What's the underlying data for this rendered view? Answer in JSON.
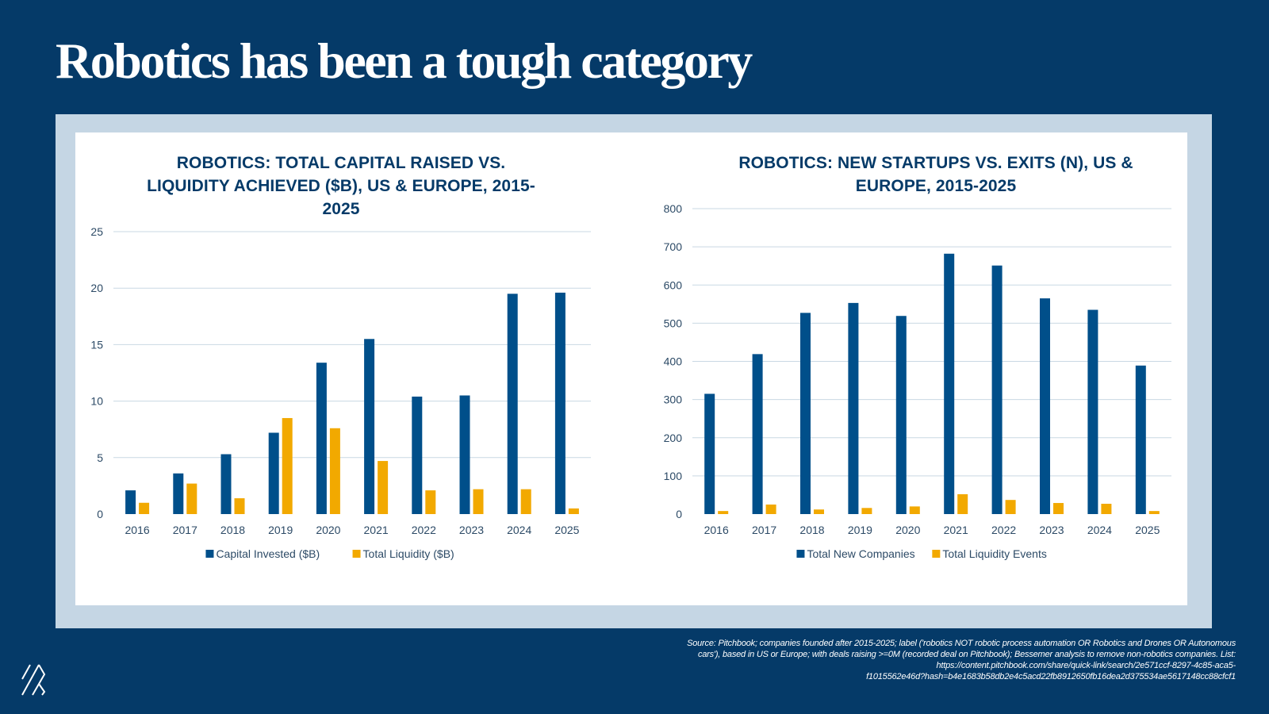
{
  "slide": {
    "title": "Robotics has been a tough category",
    "source_lines": [
      "Source: Pitchbook; companies founded after 2015-2025; label ('robotics NOT robotic process automation OR Robotics and Drones OR Autonomous",
      "cars'), based in US or Europe; with deals raising >=0M (recorded deal on Pitchbook); Bessemer analysis to remove non-robotics companies. List:",
      "https://content.pitchbook.com/share/quick-link/search/2e571ccf-8297-4c85-aca5-",
      "f1015562e46d?hash=b4e1683b58db2e4c5acd22fb8912650fb16dea2d375534ae5617148cc88cfcf1"
    ],
    "logo_icon": "bessemer-stripes-logo-icon"
  },
  "colors": {
    "background": "#053a68",
    "frame": "#c5d6e4",
    "series_primary": "#004f8a",
    "series_secondary": "#f2a900",
    "gridline": "#c9d8e3",
    "title_text": "#053a68"
  },
  "chart_data": [
    {
      "type": "bar",
      "title_lines": [
        "ROBOTICS: TOTAL CAPITAL RAISED VS.",
        "LIQUIDITY ACHIEVED ($B), US & EUROPE, 2015-",
        "2025"
      ],
      "categories": [
        "2016",
        "2017",
        "2018",
        "2019",
        "2020",
        "2021",
        "2022",
        "2023",
        "2024",
        "2025"
      ],
      "series": [
        {
          "name": "Capital Invested ($B)",
          "color": "#004f8a",
          "values": [
            2.1,
            3.6,
            5.3,
            7.2,
            13.4,
            15.5,
            10.4,
            10.5,
            19.5,
            19.6
          ]
        },
        {
          "name": "Total Liquidity ($B)",
          "color": "#f2a900",
          "values": [
            1.0,
            2.7,
            1.4,
            8.5,
            7.6,
            4.7,
            2.1,
            2.2,
            2.2,
            0.5
          ]
        }
      ],
      "xlabel": "",
      "ylabel": "",
      "ylim": [
        0,
        25
      ],
      "yticks": [
        0,
        5,
        10,
        15,
        20,
        25
      ],
      "grid": true,
      "legend": "bottom"
    },
    {
      "type": "bar",
      "title_lines": [
        "ROBOTICS: NEW STARTUPS VS. EXITS (N), US &",
        "EUROPE, 2015-2025"
      ],
      "categories": [
        "2016",
        "2017",
        "2018",
        "2019",
        "2020",
        "2021",
        "2022",
        "2023",
        "2024",
        "2025"
      ],
      "series": [
        {
          "name": "Total New Companies",
          "color": "#004f8a",
          "values": [
            315,
            419,
            527,
            553,
            519,
            682,
            651,
            565,
            535,
            389
          ]
        },
        {
          "name": "Total Liquidity Events",
          "color": "#f2a900",
          "values": [
            8,
            25,
            12,
            16,
            20,
            52,
            37,
            29,
            27,
            8
          ]
        }
      ],
      "xlabel": "",
      "ylabel": "",
      "ylim": [
        0,
        800
      ],
      "yticks": [
        0,
        100,
        200,
        300,
        400,
        500,
        600,
        700,
        800
      ],
      "grid": true,
      "legend": "bottom"
    }
  ]
}
